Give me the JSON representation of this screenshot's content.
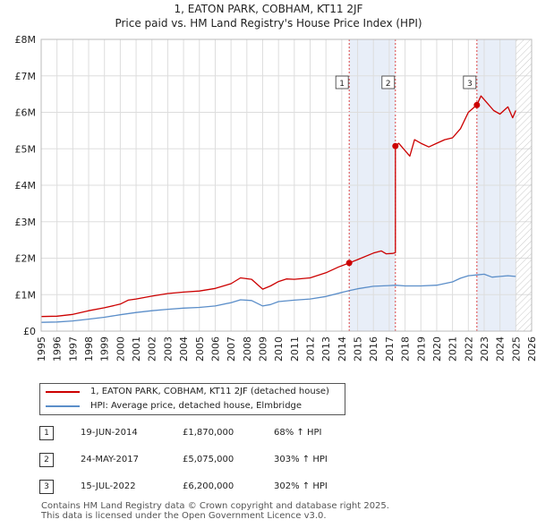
{
  "chart_data": {
    "type": "line",
    "title": "1, EATON PARK, COBHAM, KT11 2JF",
    "subtitle": "Price paid vs. HM Land Registry's House Price Index (HPI)",
    "xlim": [
      1995,
      2026
    ],
    "ylim": [
      0,
      8000000
    ],
    "x_ticks": [
      "1995",
      "1996",
      "1997",
      "1998",
      "1999",
      "2000",
      "2001",
      "2002",
      "2003",
      "2004",
      "2005",
      "2006",
      "2007",
      "2008",
      "2009",
      "2010",
      "2011",
      "2012",
      "2013",
      "2014",
      "2015",
      "2016",
      "2017",
      "2018",
      "2019",
      "2020",
      "2021",
      "2022",
      "2023",
      "2024",
      "2025",
      "2026"
    ],
    "y_ticks": [
      {
        "value": 0,
        "label": "£0"
      },
      {
        "value": 1000000,
        "label": "£1M"
      },
      {
        "value": 2000000,
        "label": "£2M"
      },
      {
        "value": 3000000,
        "label": "£3M"
      },
      {
        "value": 4000000,
        "label": "£4M"
      },
      {
        "value": 5000000,
        "label": "£5M"
      },
      {
        "value": 6000000,
        "label": "£6M"
      },
      {
        "value": 7000000,
        "label": "£7M"
      },
      {
        "value": 8000000,
        "label": "£8M"
      }
    ],
    "grid": true,
    "hatched_future_from": 2025.0,
    "series": [
      {
        "name": "1, EATON PARK, COBHAM, KT11 2JF (detached house)",
        "color": "#cc0000",
        "points": [
          [
            1995.0,
            400000
          ],
          [
            1996.0,
            410000
          ],
          [
            1997.0,
            460000
          ],
          [
            1998.0,
            560000
          ],
          [
            1999.0,
            640000
          ],
          [
            2000.0,
            740000
          ],
          [
            2000.5,
            850000
          ],
          [
            2001.0,
            880000
          ],
          [
            2002.0,
            960000
          ],
          [
            2003.0,
            1030000
          ],
          [
            2004.0,
            1070000
          ],
          [
            2005.0,
            1100000
          ],
          [
            2006.0,
            1170000
          ],
          [
            2007.0,
            1300000
          ],
          [
            2007.6,
            1460000
          ],
          [
            2008.3,
            1420000
          ],
          [
            2009.0,
            1150000
          ],
          [
            2009.5,
            1240000
          ],
          [
            2010.0,
            1360000
          ],
          [
            2010.5,
            1430000
          ],
          [
            2011.0,
            1420000
          ],
          [
            2012.0,
            1460000
          ],
          [
            2013.0,
            1600000
          ],
          [
            2013.8,
            1760000
          ],
          [
            2014.47,
            1870000
          ],
          [
            2015.0,
            1960000
          ],
          [
            2016.0,
            2140000
          ],
          [
            2016.5,
            2200000
          ],
          [
            2016.8,
            2120000
          ],
          [
            2017.2,
            2130000
          ],
          [
            2017.39,
            2150000
          ],
          [
            2017.39,
            5075000
          ],
          [
            2017.6,
            5150000
          ],
          [
            2018.0,
            4950000
          ],
          [
            2018.3,
            4800000
          ],
          [
            2018.6,
            5250000
          ],
          [
            2019.0,
            5150000
          ],
          [
            2019.5,
            5050000
          ],
          [
            2020.0,
            5150000
          ],
          [
            2020.5,
            5250000
          ],
          [
            2021.0,
            5300000
          ],
          [
            2021.5,
            5550000
          ],
          [
            2022.0,
            6000000
          ],
          [
            2022.54,
            6200000
          ],
          [
            2022.8,
            6450000
          ],
          [
            2023.2,
            6250000
          ],
          [
            2023.6,
            6050000
          ],
          [
            2024.0,
            5950000
          ],
          [
            2024.5,
            6150000
          ],
          [
            2024.8,
            5850000
          ],
          [
            2025.0,
            6050000
          ]
        ]
      },
      {
        "name": "HPI: Average price, detached house, Elmbridge",
        "color": "#5b8ec9",
        "points": [
          [
            1995.0,
            240000
          ],
          [
            1996.0,
            250000
          ],
          [
            1997.0,
            280000
          ],
          [
            1998.0,
            330000
          ],
          [
            1999.0,
            380000
          ],
          [
            2000.0,
            450000
          ],
          [
            2001.0,
            510000
          ],
          [
            2002.0,
            560000
          ],
          [
            2003.0,
            600000
          ],
          [
            2004.0,
            630000
          ],
          [
            2005.0,
            650000
          ],
          [
            2006.0,
            690000
          ],
          [
            2007.0,
            780000
          ],
          [
            2007.6,
            860000
          ],
          [
            2008.3,
            840000
          ],
          [
            2009.0,
            690000
          ],
          [
            2009.5,
            730000
          ],
          [
            2010.0,
            810000
          ],
          [
            2011.0,
            850000
          ],
          [
            2012.0,
            880000
          ],
          [
            2013.0,
            950000
          ],
          [
            2014.0,
            1060000
          ],
          [
            2014.47,
            1110000
          ],
          [
            2015.0,
            1160000
          ],
          [
            2016.0,
            1230000
          ],
          [
            2017.0,
            1250000
          ],
          [
            2017.39,
            1260000
          ],
          [
            2018.0,
            1240000
          ],
          [
            2019.0,
            1240000
          ],
          [
            2020.0,
            1260000
          ],
          [
            2021.0,
            1350000
          ],
          [
            2021.5,
            1450000
          ],
          [
            2022.0,
            1520000
          ],
          [
            2022.54,
            1540000
          ],
          [
            2023.0,
            1560000
          ],
          [
            2023.5,
            1480000
          ],
          [
            2024.0,
            1500000
          ],
          [
            2024.5,
            1520000
          ],
          [
            2025.0,
            1500000
          ]
        ]
      }
    ],
    "sales": [
      {
        "id": "1",
        "x": 2014.47,
        "price": 1870000,
        "date": "19-JUN-2014",
        "price_label": "£1,870,000",
        "hpi_label": "68% ↑ HPI"
      },
      {
        "id": "2",
        "x": 2017.39,
        "price": 5075000,
        "date": "24-MAY-2017",
        "price_label": "£5,075,000",
        "hpi_label": "303% ↑ HPI"
      },
      {
        "id": "3",
        "x": 2022.54,
        "price": 6200000,
        "date": "15-JUL-2022",
        "price_label": "£6,200,000",
        "hpi_label": "302% ↑ HPI"
      }
    ]
  },
  "legend": {
    "property_label": "1, EATON PARK, COBHAM, KT11 2JF (detached house)",
    "hpi_label": "HPI: Average price, detached house, Elmbridge",
    "property_color": "#cc0000",
    "hpi_color": "#5b8ec9"
  },
  "footer": {
    "line1": "Contains HM Land Registry data © Crown copyright and database right 2025.",
    "line2": "This data is licensed under the Open Government Licence v3.0."
  }
}
